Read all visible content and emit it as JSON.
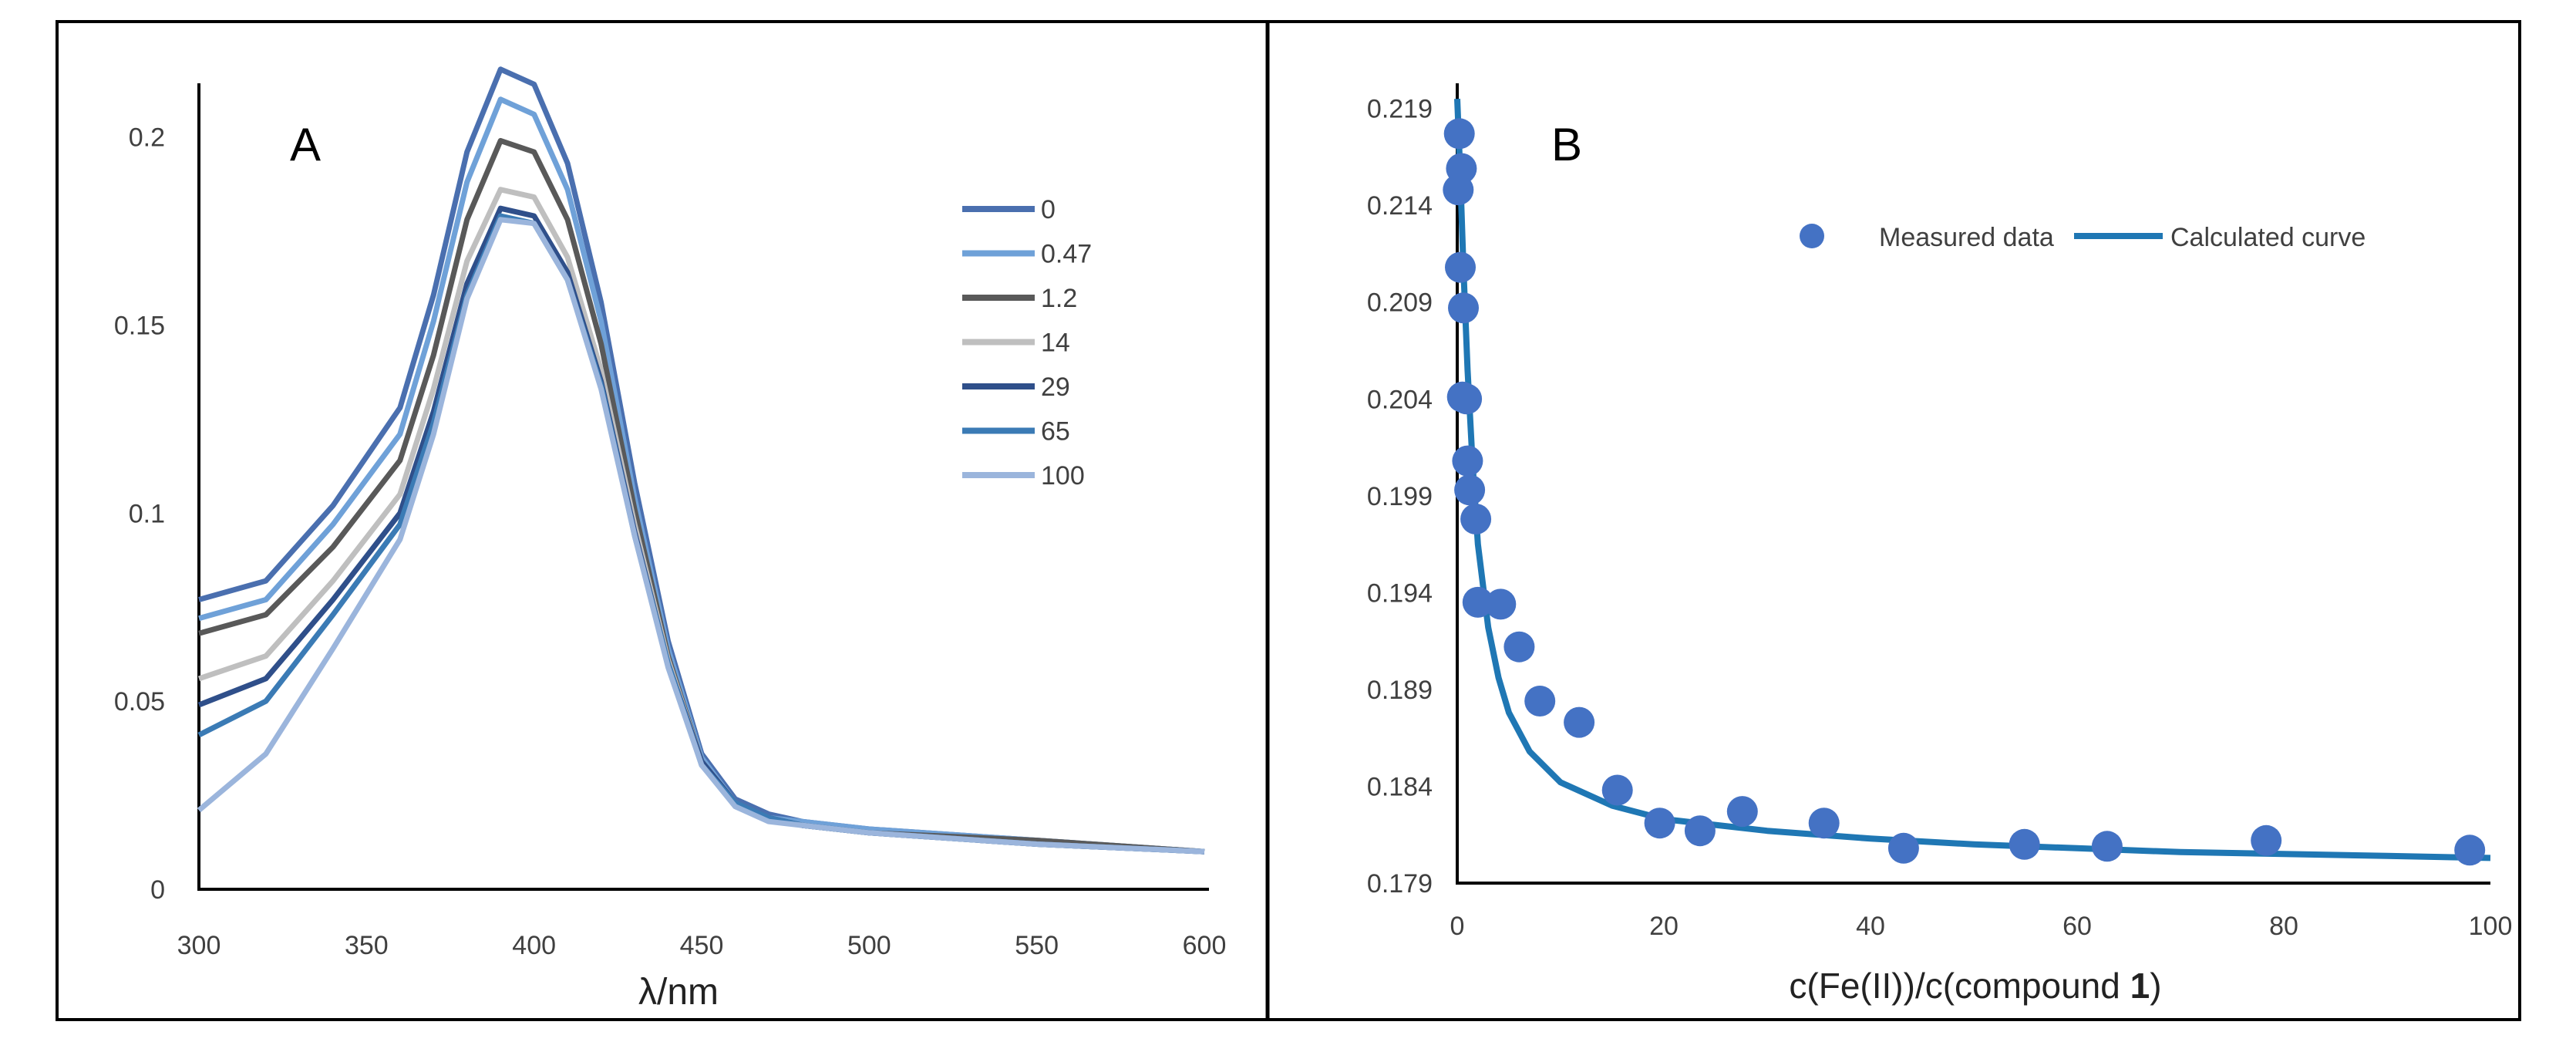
{
  "colors": {
    "frame": "#000000",
    "axis": "#000000",
    "tick_text": "#404040",
    "measured": "#4472C4",
    "calculated": "#1F77B4",
    "series": [
      "#4A6FAF",
      "#6FA1D8",
      "#595959",
      "#BFBFBF",
      "#2F4F8A",
      "#3B7BB5",
      "#9BB5DC"
    ]
  },
  "chart_data": [
    {
      "panel": "A",
      "type": "line",
      "panel_label": "A",
      "title": "",
      "xlabel": "λ/nm",
      "ylabel": "",
      "xlim": [
        300,
        600
      ],
      "ylim": [
        0,
        0.22
      ],
      "xticks": [
        300,
        350,
        400,
        450,
        500,
        550,
        600
      ],
      "yticks": [
        0,
        0.05,
        0.1,
        0.15,
        0.2
      ],
      "xtick_labels": [
        "300",
        "350",
        "400",
        "450",
        "500",
        "550",
        "600"
      ],
      "ytick_labels": [
        "0",
        "0.05",
        "0.1",
        "0.15",
        "0.2"
      ],
      "gridlines": false,
      "legend_position": "right",
      "x": [
        300,
        320,
        340,
        360,
        370,
        380,
        390,
        400,
        410,
        420,
        430,
        440,
        450,
        460,
        470,
        480,
        500,
        550,
        600
      ],
      "series": [
        {
          "name": "0",
          "values": [
            0.077,
            0.082,
            0.102,
            0.128,
            0.158,
            0.196,
            0.218,
            0.214,
            0.193,
            0.156,
            0.108,
            0.066,
            0.036,
            0.024,
            0.02,
            0.018,
            0.016,
            0.013,
            0.01
          ]
        },
        {
          "name": "0.47",
          "values": [
            0.072,
            0.077,
            0.097,
            0.121,
            0.151,
            0.188,
            0.21,
            0.206,
            0.186,
            0.151,
            0.104,
            0.064,
            0.035,
            0.023,
            0.019,
            0.018,
            0.016,
            0.013,
            0.01
          ]
        },
        {
          "name": "1.2",
          "values": [
            0.068,
            0.073,
            0.091,
            0.114,
            0.142,
            0.178,
            0.199,
            0.196,
            0.178,
            0.145,
            0.101,
            0.062,
            0.034,
            0.023,
            0.019,
            0.017,
            0.015,
            0.013,
            0.01
          ]
        },
        {
          "name": "14",
          "values": [
            0.056,
            0.062,
            0.082,
            0.105,
            0.133,
            0.167,
            0.186,
            0.184,
            0.168,
            0.138,
            0.097,
            0.061,
            0.034,
            0.023,
            0.019,
            0.017,
            0.015,
            0.012,
            0.01
          ]
        },
        {
          "name": "29",
          "values": [
            0.049,
            0.056,
            0.077,
            0.1,
            0.127,
            0.161,
            0.181,
            0.179,
            0.164,
            0.135,
            0.095,
            0.06,
            0.034,
            0.023,
            0.019,
            0.017,
            0.015,
            0.012,
            0.01
          ]
        },
        {
          "name": "65",
          "values": [
            0.041,
            0.05,
            0.073,
            0.097,
            0.124,
            0.158,
            0.179,
            0.177,
            0.162,
            0.134,
            0.094,
            0.06,
            0.033,
            0.023,
            0.019,
            0.017,
            0.015,
            0.012,
            0.01
          ]
        },
        {
          "name": "100",
          "values": [
            0.021,
            0.036,
            0.064,
            0.093,
            0.121,
            0.157,
            0.178,
            0.177,
            0.162,
            0.133,
            0.094,
            0.059,
            0.033,
            0.022,
            0.018,
            0.017,
            0.015,
            0.012,
            0.01
          ]
        }
      ]
    },
    {
      "panel": "B",
      "type": "scatter",
      "panel_label": "B",
      "title": "",
      "xlabel_prefix": "c(Fe(II))/c(compound ",
      "xlabel_bold": "1",
      "xlabel_suffix": ")",
      "ylabel": "",
      "xlim": [
        0,
        100
      ],
      "ylim": [
        0.179,
        0.2205
      ],
      "xticks": [
        0,
        20,
        40,
        60,
        80,
        100
      ],
      "yticks": [
        0.179,
        0.184,
        0.189,
        0.194,
        0.199,
        0.204,
        0.209,
        0.214,
        0.219
      ],
      "xtick_labels": [
        "0",
        "20",
        "40",
        "60",
        "80",
        "100"
      ],
      "ytick_labels": [
        "0.179",
        "0.184",
        "0.189",
        "0.194",
        "0.199",
        "0.204",
        "0.209",
        "0.214",
        "0.219"
      ],
      "gridlines": false,
      "legend_position": "top-right",
      "legend_measured": "Measured data",
      "legend_calculated": "Calculated curve",
      "series": [
        {
          "name": "Measured data",
          "points": [
            [
              0.2,
              0.2177
            ],
            [
              0.4,
              0.2159
            ],
            [
              0.1,
              0.2148
            ],
            [
              0.3,
              0.2108
            ],
            [
              0.6,
              0.2087
            ],
            [
              0.5,
              0.2041
            ],
            [
              0.9,
              0.204
            ],
            [
              1.0,
              0.2008
            ],
            [
              1.2,
              0.1993
            ],
            [
              1.8,
              0.1978
            ],
            [
              2.0,
              0.1935
            ],
            [
              4.2,
              0.1934
            ],
            [
              6.0,
              0.1912
            ],
            [
              8.0,
              0.1884
            ],
            [
              11.8,
              0.1873
            ],
            [
              15.5,
              0.1838
            ],
            [
              19.6,
              0.1821
            ],
            [
              23.5,
              0.1817
            ],
            [
              27.6,
              0.1827
            ],
            [
              35.5,
              0.1821
            ],
            [
              43.2,
              0.1808
            ],
            [
              54.9,
              0.181
            ],
            [
              62.9,
              0.1809
            ],
            [
              78.3,
              0.1812
            ],
            [
              98.0,
              0.1807
            ]
          ]
        },
        {
          "name": "Calculated curve",
          "points": [
            [
              0,
              0.2195
            ],
            [
              0.3,
              0.2155
            ],
            [
              0.6,
              0.2108
            ],
            [
              1.0,
              0.2055
            ],
            [
              1.5,
              0.2005
            ],
            [
              2.0,
              0.1965
            ],
            [
              3.0,
              0.1922
            ],
            [
              4.0,
              0.1896
            ],
            [
              5.0,
              0.1878
            ],
            [
              7.0,
              0.1858
            ],
            [
              10.0,
              0.1842
            ],
            [
              15.0,
              0.183
            ],
            [
              20.0,
              0.1823
            ],
            [
              30.0,
              0.1817
            ],
            [
              40.0,
              0.1813
            ],
            [
              50.0,
              0.181
            ],
            [
              60.0,
              0.1808
            ],
            [
              70.0,
              0.1806
            ],
            [
              80.0,
              0.1805
            ],
            [
              90.0,
              0.1804
            ],
            [
              100.0,
              0.1803
            ]
          ]
        }
      ]
    }
  ]
}
